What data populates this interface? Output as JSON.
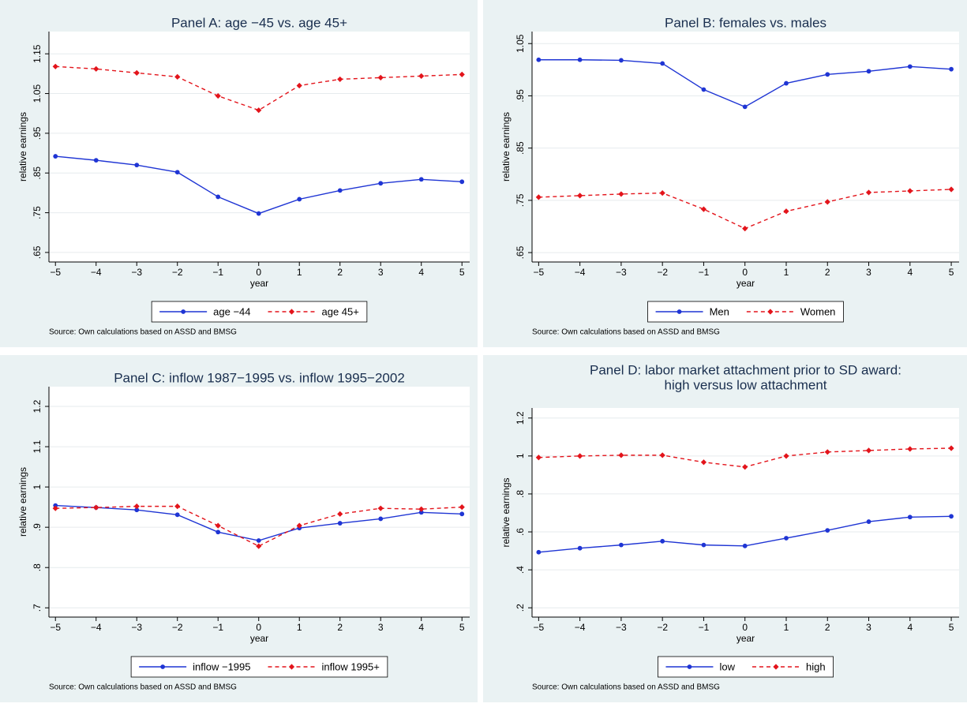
{
  "chart_data": [
    {
      "type": "line",
      "title": "Panel A: age −45 vs. age 45+",
      "xlabel": "year",
      "ylabel": "relative earnings",
      "x": [
        -5,
        -4,
        -3,
        -2,
        -1,
        0,
        1,
        2,
        3,
        4,
        5
      ],
      "xlim": [
        -5.16,
        5.19
      ],
      "xticks": [
        {
          "value": -5,
          "label": "−5"
        },
        {
          "value": -4,
          "label": "−4"
        },
        {
          "value": -3,
          "label": "−3"
        },
        {
          "value": -2,
          "label": "−2"
        },
        {
          "value": -1,
          "label": "−1"
        },
        0,
        1,
        2,
        3,
        4,
        5
      ],
      "ylim": [
        0.626,
        1.206
      ],
      "yticks": [
        {
          "value": 0.65,
          "label": ".65"
        },
        {
          "value": 0.75,
          "label": ".75"
        },
        {
          "value": 0.85,
          "label": ".85"
        },
        {
          "value": 0.95,
          "label": ".95"
        },
        1.05,
        1.15
      ],
      "grid": true,
      "legend": "bottom",
      "series": [
        {
          "name": "age −44",
          "color": "#1f35d4",
          "line_style": "solid",
          "marker": "circle",
          "values": [
            0.892,
            0.882,
            0.87,
            0.852,
            0.79,
            0.748,
            0.784,
            0.806,
            0.824,
            0.834,
            0.828
          ]
        },
        {
          "name": "age 45+",
          "color": "#e3141b",
          "line_style": "dashed",
          "marker": "diamond",
          "values": [
            1.118,
            1.112,
            1.102,
            1.092,
            1.044,
            1.008,
            1.07,
            1.086,
            1.09,
            1.094,
            1.098
          ]
        }
      ],
      "note": "Source: Own calculations based on ASSD and BMSG"
    },
    {
      "type": "line",
      "title": "Panel B: females vs. males",
      "xlabel": "year",
      "ylabel": "relative earnings",
      "x": [
        -5,
        -4,
        -3,
        -2,
        -1,
        0,
        1,
        2,
        3,
        4,
        5
      ],
      "xlim": [
        -5.16,
        5.19
      ],
      "xticks": [
        {
          "value": -5,
          "label": "−5"
        },
        {
          "value": -4,
          "label": "−4"
        },
        {
          "value": -3,
          "label": "−3"
        },
        {
          "value": -2,
          "label": "−2"
        },
        {
          "value": -1,
          "label": "−1"
        },
        0,
        1,
        2,
        3,
        4,
        5
      ],
      "ylim": [
        0.632,
        1.073
      ],
      "yticks": [
        {
          "value": 0.65,
          "label": ".65"
        },
        {
          "value": 0.75,
          "label": ".75"
        },
        {
          "value": 0.85,
          "label": ".85"
        },
        {
          "value": 0.95,
          "label": ".95"
        },
        1.05
      ],
      "grid": true,
      "legend": "bottom",
      "series": [
        {
          "name": "Men",
          "color": "#1f35d4",
          "line_style": "solid",
          "marker": "circle",
          "values": [
            1.019,
            1.019,
            1.018,
            1.012,
            0.962,
            0.929,
            0.974,
            0.991,
            0.997,
            1.006,
            1.001
          ]
        },
        {
          "name": "Women",
          "color": "#e3141b",
          "line_style": "dashed",
          "marker": "diamond",
          "values": [
            0.756,
            0.759,
            0.762,
            0.764,
            0.733,
            0.696,
            0.729,
            0.747,
            0.765,
            0.768,
            0.771
          ]
        }
      ],
      "note": "Source: Own calculations based on ASSD and BMSG"
    },
    {
      "type": "line",
      "title": "Panel C: inflow 1987−1995 vs. inflow 1995−2002",
      "xlabel": "year",
      "ylabel": "relative earnings",
      "x": [
        -5,
        -4,
        -3,
        -2,
        -1,
        0,
        1,
        2,
        3,
        4,
        5
      ],
      "xlim": [
        -5.16,
        5.19
      ],
      "xticks": [
        {
          "value": -5,
          "label": "−5"
        },
        {
          "value": -4,
          "label": "−4"
        },
        {
          "value": -3,
          "label": "−3"
        },
        {
          "value": -2,
          "label": "−2"
        },
        {
          "value": -1,
          "label": "−1"
        },
        0,
        1,
        2,
        3,
        4,
        5
      ],
      "ylim": [
        0.677,
        1.249
      ],
      "yticks": [
        {
          "value": 0.7,
          "label": ".7"
        },
        {
          "value": 0.8,
          "label": ".8"
        },
        {
          "value": 0.9,
          "label": ".9"
        },
        1,
        1.1,
        1.2
      ],
      "grid": true,
      "legend": "bottom",
      "series": [
        {
          "name": "inflow −1995",
          "color": "#1f35d4",
          "line_style": "solid",
          "marker": "circle",
          "values": [
            0.954,
            0.949,
            0.943,
            0.931,
            0.888,
            0.867,
            0.898,
            0.91,
            0.921,
            0.937,
            0.933
          ]
        },
        {
          "name": "inflow 1995+",
          "color": "#e3141b",
          "line_style": "dashed",
          "marker": "diamond",
          "values": [
            0.947,
            0.949,
            0.952,
            0.952,
            0.904,
            0.853,
            0.904,
            0.933,
            0.947,
            0.945,
            0.95
          ]
        }
      ],
      "note": "Source: Own calculations based on ASSD and BMSG"
    },
    {
      "type": "line",
      "title": [
        "Panel D: labor market attachment prior to SD award:",
        "high versus low attachment"
      ],
      "xlabel": "year",
      "ylabel": "relative earnings",
      "x": [
        -5,
        -4,
        -3,
        -2,
        -1,
        0,
        1,
        2,
        3,
        4,
        5
      ],
      "xlim": [
        -5.16,
        5.19
      ],
      "xticks": [
        {
          "value": -5,
          "label": "−5"
        },
        {
          "value": -4,
          "label": "−4"
        },
        {
          "value": -3,
          "label": "−3"
        },
        {
          "value": -2,
          "label": "−2"
        },
        {
          "value": -1,
          "label": "−1"
        },
        0,
        1,
        2,
        3,
        4,
        5
      ],
      "ylim": [
        0.151,
        1.253
      ],
      "yticks": [
        {
          "value": 0.2,
          "label": ".2"
        },
        {
          "value": 0.4,
          "label": ".4"
        },
        {
          "value": 0.6,
          "label": ".6"
        },
        {
          "value": 0.8,
          "label": ".8"
        },
        1,
        1.2
      ],
      "grid": true,
      "legend": "bottom",
      "series": [
        {
          "name": "low",
          "color": "#1f35d4",
          "line_style": "solid",
          "marker": "circle",
          "values": [
            0.493,
            0.514,
            0.531,
            0.551,
            0.531,
            0.526,
            0.567,
            0.608,
            0.654,
            0.678,
            0.682
          ]
        },
        {
          "name": "high",
          "color": "#e3141b",
          "line_style": "dashed",
          "marker": "diamond",
          "values": [
            0.992,
            1.0,
            1.004,
            1.004,
            0.967,
            0.942,
            1.0,
            1.021,
            1.029,
            1.037,
            1.041
          ]
        }
      ],
      "note": "Source: Own calculations based on ASSD and BMSG"
    }
  ]
}
